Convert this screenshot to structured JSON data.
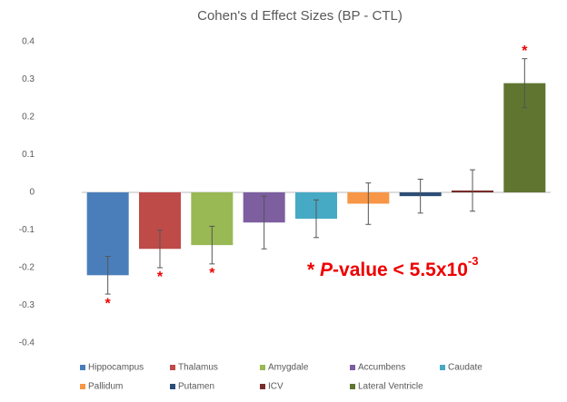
{
  "chart_data": {
    "type": "bar",
    "title": "Cohen's d Effect Sizes (BP - CTL)",
    "categories": [
      "Hippocampus",
      "Thalamus",
      "Amygdale",
      "Accumbens",
      "Caudate",
      "Pallidum",
      "Putamen",
      "ICV",
      "Lateral Ventricle"
    ],
    "values": [
      -0.22,
      -0.15,
      -0.14,
      -0.08,
      -0.07,
      -0.03,
      -0.01,
      0.005,
      0.29
    ],
    "errors": [
      0.05,
      0.05,
      0.05,
      0.07,
      0.05,
      0.055,
      0.045,
      0.055,
      0.065
    ],
    "colors": [
      "#4a7ebb",
      "#be4b48",
      "#98b954",
      "#7d5fa0",
      "#46aac5",
      "#f79646",
      "#2c4d75",
      "#772c2a",
      "#5f7530"
    ],
    "significance": [
      "*",
      "*",
      "*",
      null,
      null,
      null,
      null,
      null,
      "*"
    ],
    "annotation": {
      "prefix": "* ",
      "italic": "P",
      "text": "-value < 5.5x10",
      "sup": "-3"
    },
    "ylim": [
      -0.4,
      0.4
    ],
    "yticks": [
      0.4,
      0.3,
      0.2,
      0.1,
      0,
      -0.1,
      -0.2,
      -0.3,
      -0.4
    ],
    "grid": false,
    "legend": "bottom"
  }
}
